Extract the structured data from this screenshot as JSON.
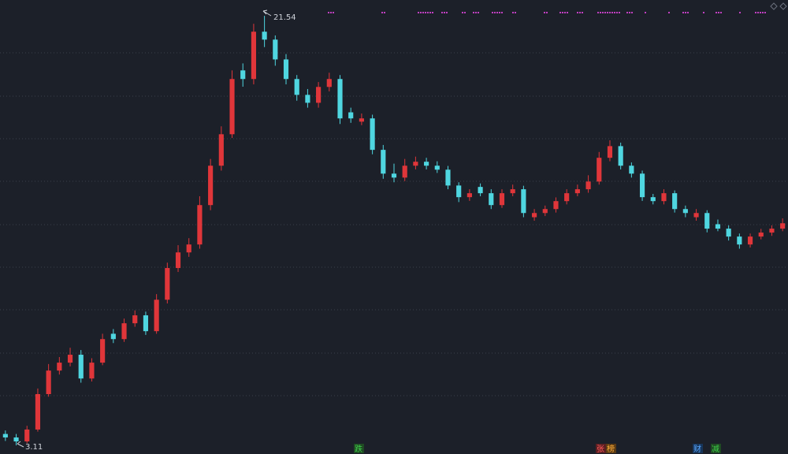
{
  "chart_data": {
    "type": "candlestick",
    "categories": [
      null,
      null,
      null,
      null,
      null,
      null,
      null,
      null,
      null,
      null,
      null,
      null,
      null,
      null,
      null,
      null,
      null,
      null,
      null,
      null,
      null,
      null,
      null,
      null,
      null,
      null,
      null,
      null,
      null,
      null,
      null,
      null,
      null,
      null,
      null,
      null,
      null,
      null,
      null,
      null,
      null,
      null,
      null,
      null,
      null,
      null,
      null,
      null,
      null,
      null,
      null,
      null,
      null,
      null,
      null,
      null,
      null,
      null,
      null,
      null,
      null,
      null,
      null,
      null,
      null,
      null,
      null,
      null,
      null,
      null,
      null,
      null,
      null
    ],
    "open": [
      3.6,
      3.45,
      3.28,
      3.79,
      5.31,
      6.32,
      6.66,
      7.0,
      5.98,
      6.66,
      7.9,
      7.67,
      8.35,
      8.69,
      8.01,
      9.36,
      10.72,
      11.39,
      11.73,
      13.42,
      15.11,
      16.46,
      19.2,
      18.83,
      20.86,
      20.52,
      19.67,
      18.83,
      18.15,
      17.81,
      18.49,
      18.83,
      17.4,
      17.0,
      17.14,
      15.79,
      14.77,
      14.6,
      15.11,
      15.28,
      15.11,
      14.94,
      14.26,
      13.76,
      14.2,
      13.93,
      13.42,
      13.93,
      14.1,
      12.9,
      13.08,
      13.25,
      13.59,
      13.93,
      14.1,
      14.43,
      15.45,
      15.95,
      15.11,
      14.77,
      13.76,
      13.59,
      13.93,
      13.25,
      12.9,
      13.08,
      12.6,
      12.41,
      12.07,
      11.73,
      12.07,
      12.24,
      12.41
    ],
    "high": [
      3.75,
      3.6,
      3.95,
      5.55,
      6.6,
      6.9,
      7.3,
      7.2,
      6.85,
      7.9,
      8.1,
      8.55,
      8.9,
      8.85,
      9.6,
      10.95,
      11.7,
      12.0,
      13.8,
      15.4,
      16.8,
      19.2,
      19.5,
      21.2,
      21.54,
      20.7,
      19.9,
      19.0,
      18.4,
      18.7,
      19.1,
      19.0,
      17.6,
      17.35,
      17.3,
      16.0,
      15.2,
      15.4,
      15.5,
      15.45,
      15.3,
      15.1,
      14.4,
      14.1,
      14.35,
      14.1,
      14.1,
      14.3,
      14.25,
      13.25,
      13.4,
      13.75,
      14.1,
      14.3,
      14.7,
      15.7,
      16.2,
      16.1,
      15.25,
      14.9,
      13.9,
      14.1,
      14.05,
      13.4,
      13.25,
      13.2,
      12.8,
      12.55,
      12.2,
      12.2,
      12.4,
      12.55,
      12.85
    ],
    "low": [
      3.3,
      3.11,
      3.2,
      3.7,
      5.2,
      6.15,
      6.5,
      5.8,
      5.85,
      6.55,
      7.5,
      7.55,
      8.2,
      7.85,
      7.9,
      9.2,
      10.55,
      11.2,
      11.55,
      13.2,
      14.9,
      16.3,
      18.5,
      18.6,
      20.2,
      19.4,
      18.6,
      17.9,
      17.6,
      17.6,
      18.3,
      16.9,
      16.95,
      16.85,
      15.6,
      14.55,
      14.4,
      14.45,
      14.95,
      14.95,
      14.8,
      14.1,
      13.55,
      13.6,
      13.8,
      13.25,
      13.3,
      13.8,
      12.9,
      12.75,
      12.95,
      13.1,
      13.45,
      13.8,
      13.95,
      14.3,
      15.3,
      14.95,
      14.6,
      13.6,
      13.45,
      13.45,
      13.1,
      12.9,
      12.75,
      12.25,
      12.3,
      11.9,
      11.55,
      11.6,
      11.95,
      12.1,
      12.3
    ],
    "close": [
      3.45,
      3.28,
      3.79,
      5.31,
      6.32,
      6.66,
      7.0,
      5.98,
      6.66,
      7.67,
      7.67,
      8.35,
      8.69,
      8.01,
      9.36,
      10.72,
      11.39,
      11.73,
      13.42,
      15.11,
      16.46,
      18.83,
      18.83,
      20.86,
      20.52,
      19.67,
      18.83,
      18.15,
      17.81,
      18.49,
      18.83,
      17.14,
      17.14,
      17.14,
      15.79,
      14.77,
      14.6,
      15.11,
      15.28,
      15.11,
      14.94,
      14.26,
      13.76,
      13.93,
      13.93,
      13.42,
      13.93,
      14.1,
      13.08,
      13.08,
      13.25,
      13.59,
      13.93,
      14.1,
      14.43,
      15.45,
      15.95,
      15.11,
      14.77,
      13.76,
      13.59,
      13.93,
      13.25,
      13.08,
      13.08,
      12.41,
      12.41,
      12.07,
      11.73,
      12.07,
      12.24,
      12.41,
      12.64
    ],
    "up_color": "#e0363a",
    "down_color": "#4fd6e0",
    "ylim": [
      2.74,
      22.22
    ],
    "max_label": "21.54",
    "min_label": "3.11",
    "markers": [
      "跌",
      "张",
      "榜",
      "财",
      "减"
    ]
  }
}
